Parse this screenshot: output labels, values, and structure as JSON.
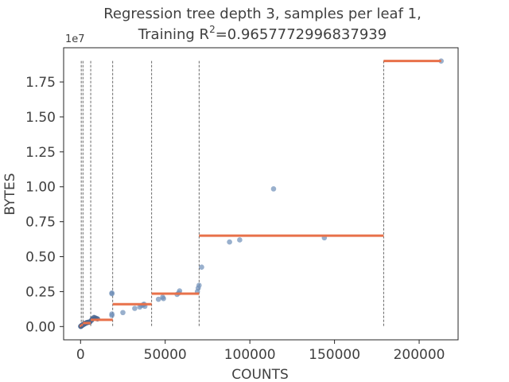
{
  "chart_data": {
    "type": "scatter",
    "title_line1": "Regression tree depth 3, samples per leaf 1,",
    "title_line2_prefix": "Training R",
    "title_line2_sup": "2",
    "title_line2_suffix": "=0.9657772996837939",
    "xlabel": "COUNTS",
    "ylabel": "BYTES",
    "y_offset_text": "1e7",
    "xlim": [
      -10000,
      223000
    ],
    "ylim": [
      -950000,
      19950000
    ],
    "xticks": [
      0,
      50000,
      100000,
      150000,
      200000
    ],
    "xtick_labels": [
      "0",
      "50000",
      "100000",
      "150000",
      "200000"
    ],
    "yticks": [
      0,
      2500000,
      5000000,
      7500000,
      10000000,
      12500000,
      15000000,
      17500000
    ],
    "ytick_labels": [
      "0.00",
      "0.25",
      "0.50",
      "0.75",
      "1.00",
      "1.25",
      "1.50",
      "1.75"
    ],
    "grid": false,
    "colors": {
      "points": "#6e8fb8",
      "points_dark": "#4a6690",
      "steps": "#e8714a",
      "splits": "#404040",
      "axes": "#262626",
      "text": "#404040"
    },
    "split_lines": {
      "x": [
        400,
        1400,
        6000,
        19000,
        42000,
        70000,
        179000
      ],
      "y_top": 19000000
    },
    "steps": [
      {
        "x0": -500,
        "x1": 400,
        "y": 50000
      },
      {
        "x0": 400,
        "x1": 1400,
        "y": 120000
      },
      {
        "x0": 1400,
        "x1": 6000,
        "y": 250000
      },
      {
        "x0": 6000,
        "x1": 19000,
        "y": 480000
      },
      {
        "x0": 19000,
        "x1": 42000,
        "y": 1600000
      },
      {
        "x0": 42000,
        "x1": 70000,
        "y": 2350000
      },
      {
        "x0": 70000,
        "x1": 179000,
        "y": 6500000
      },
      {
        "x0": 179000,
        "x1": 213000,
        "y": 19000000
      }
    ],
    "points": [
      {
        "x": 100,
        "y": 10000
      },
      {
        "x": 300,
        "y": 30000
      },
      {
        "x": 500,
        "y": 50000
      },
      {
        "x": 700,
        "y": 70000
      },
      {
        "x": 900,
        "y": 90000
      },
      {
        "x": 1100,
        "y": 110000
      },
      {
        "x": 1300,
        "y": 120000
      },
      {
        "x": 1500,
        "y": 140000
      },
      {
        "x": 1800,
        "y": 160000
      },
      {
        "x": 2100,
        "y": 180000
      },
      {
        "x": 2400,
        "y": 200000
      },
      {
        "x": 2700,
        "y": 220000
      },
      {
        "x": 3000,
        "y": 240000
      },
      {
        "x": 3300,
        "y": 260000
      },
      {
        "x": 3600,
        "y": 270000
      },
      {
        "x": 4000,
        "y": 290000
      },
      {
        "x": 4500,
        "y": 300000
      },
      {
        "x": 5000,
        "y": 320000
      },
      {
        "x": 5500,
        "y": 330000
      },
      {
        "x": 6500,
        "y": 450000
      },
      {
        "x": 7000,
        "y": 550000
      },
      {
        "x": 8000,
        "y": 650000
      },
      {
        "x": 9000,
        "y": 600000
      },
      {
        "x": 10000,
        "y": 550000
      },
      {
        "x": 18500,
        "y": 800000
      },
      {
        "x": 18500,
        "y": 900000
      },
      {
        "x": 18500,
        "y": 2350000
      },
      {
        "x": 18500,
        "y": 2400000
      },
      {
        "x": 25000,
        "y": 1000000
      },
      {
        "x": 32000,
        "y": 1300000
      },
      {
        "x": 35000,
        "y": 1400000
      },
      {
        "x": 36000,
        "y": 1500000
      },
      {
        "x": 37000,
        "y": 1550000
      },
      {
        "x": 37500,
        "y": 1600000
      },
      {
        "x": 38000,
        "y": 1450000
      },
      {
        "x": 46000,
        "y": 1950000
      },
      {
        "x": 48500,
        "y": 2100000
      },
      {
        "x": 49000,
        "y": 2000000
      },
      {
        "x": 57000,
        "y": 2300000
      },
      {
        "x": 58000,
        "y": 2400000
      },
      {
        "x": 58500,
        "y": 2550000
      },
      {
        "x": 69000,
        "y": 2500000
      },
      {
        "x": 69500,
        "y": 2750000
      },
      {
        "x": 70000,
        "y": 2950000
      },
      {
        "x": 71500,
        "y": 4250000
      },
      {
        "x": 88000,
        "y": 6050000
      },
      {
        "x": 94000,
        "y": 6200000
      },
      {
        "x": 114000,
        "y": 9850000
      },
      {
        "x": 144000,
        "y": 6350000
      },
      {
        "x": 213000,
        "y": 19000000
      }
    ]
  }
}
